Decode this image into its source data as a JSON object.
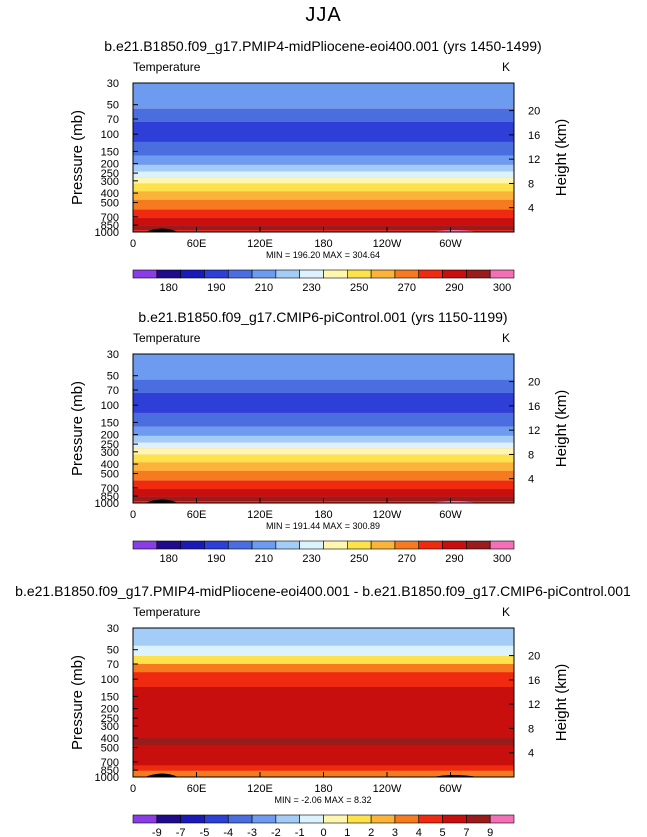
{
  "figure_title": "JJA",
  "chart_data": [
    {
      "type": "heatmap",
      "title": "b.e21.B1850.f09_g17.PMIP4-midPliocene-eoi400.001 (yrs 1450-1499)",
      "variable_label": "Temperature",
      "units_label": "K",
      "ylabel": "Pressure  (mb)",
      "ylabel_right": "Height  (km)",
      "xticks": [
        "0",
        "60E",
        "120E",
        "180",
        "120W",
        "60W"
      ],
      "xlim": [
        0,
        360
      ],
      "yticks": [
        "30",
        "50",
        "70",
        "100",
        "150",
        "200",
        "250",
        "300",
        "400",
        "500",
        "700",
        "850",
        "1000"
      ],
      "ylim": [
        1000,
        30
      ],
      "yscale": "log",
      "right_ticks": [
        "20",
        "16",
        "12",
        "8",
        "4"
      ],
      "stats": "MIN = 196.20   MAX = 304.64",
      "colorbar_labels": [
        "180",
        "190",
        "210",
        "230",
        "250",
        "270",
        "290",
        "300"
      ],
      "colorbar_colors": [
        "#8a3ce6",
        "#1f0b8c",
        "#1a1ab8",
        "#2d3fd6",
        "#4a6ee0",
        "#6d9bf0",
        "#a3cdf7",
        "#dcf2fc",
        "#fff7b0",
        "#fde24c",
        "#fbb33a",
        "#f57a20",
        "#ef2a10",
        "#c90e0e",
        "#9a1b1b",
        "#f46fb6"
      ]
    },
    {
      "type": "heatmap",
      "title": "b.e21.B1850.f09_g17.CMIP6-piControl.001 (yrs 1150-1199)",
      "variable_label": "Temperature",
      "units_label": "K",
      "ylabel": "Pressure  (mb)",
      "ylabel_right": "Height  (km)",
      "xticks": [
        "0",
        "60E",
        "120E",
        "180",
        "120W",
        "60W"
      ],
      "xlim": [
        0,
        360
      ],
      "yticks": [
        "30",
        "50",
        "70",
        "100",
        "150",
        "200",
        "250",
        "300",
        "400",
        "500",
        "700",
        "850",
        "1000"
      ],
      "ylim": [
        1000,
        30
      ],
      "yscale": "log",
      "right_ticks": [
        "20",
        "16",
        "12",
        "8",
        "4"
      ],
      "stats": "MIN = 191.44   MAX = 300.89",
      "colorbar_labels": [
        "180",
        "190",
        "210",
        "230",
        "250",
        "270",
        "290",
        "300"
      ],
      "colorbar_colors": [
        "#8a3ce6",
        "#1f0b8c",
        "#1a1ab8",
        "#2d3fd6",
        "#4a6ee0",
        "#6d9bf0",
        "#a3cdf7",
        "#dcf2fc",
        "#fff7b0",
        "#fde24c",
        "#fbb33a",
        "#f57a20",
        "#ef2a10",
        "#c90e0e",
        "#9a1b1b",
        "#f46fb6"
      ]
    },
    {
      "type": "heatmap",
      "title": "b.e21.B1850.f09_g17.PMIP4-midPliocene-eoi400.001 - b.e21.B1850.f09_g17.CMIP6-piControl.001",
      "variable_label": "Temperature",
      "units_label": "K",
      "ylabel": "Pressure  (mb)",
      "ylabel_right": "Height  (km)",
      "xticks": [
        "0",
        "60E",
        "120E",
        "180",
        "120W",
        "60W"
      ],
      "xlim": [
        0,
        360
      ],
      "yticks": [
        "30",
        "50",
        "70",
        "100",
        "150",
        "200",
        "250",
        "300",
        "400",
        "500",
        "700",
        "850",
        "1000"
      ],
      "ylim": [
        1000,
        30
      ],
      "yscale": "log",
      "right_ticks": [
        "20",
        "16",
        "12",
        "8",
        "4"
      ],
      "stats": "MIN = -2.06   MAX = 8.32",
      "colorbar_labels": [
        "-9",
        "-7",
        "-5",
        "-4",
        "-3",
        "-2",
        "-1",
        "0",
        "1",
        "2",
        "3",
        "4",
        "5",
        "7",
        "9"
      ],
      "colorbar_colors": [
        "#8a3ce6",
        "#1f0b8c",
        "#1a1ab8",
        "#2d3fd6",
        "#4a6ee0",
        "#6d9bf0",
        "#a3cdf7",
        "#dcf2fc",
        "#fff7b0",
        "#fde24c",
        "#fbb33a",
        "#f57a20",
        "#ef2a10",
        "#c90e0e",
        "#9a1b1b",
        "#f46fb6"
      ]
    }
  ]
}
